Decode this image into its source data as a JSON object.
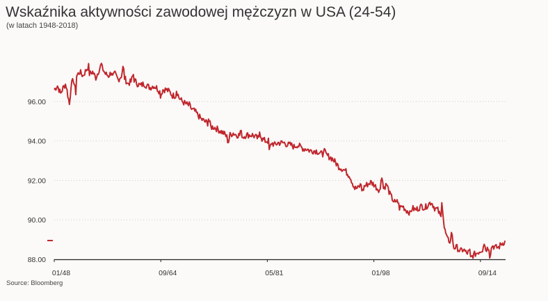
{
  "chart_data": {
    "type": "line",
    "title": "Wskaźnika aktywności zawodowej mężczyzn w USA (24-54)",
    "subtitle": "(w latach 1948-2018)",
    "source": "Source: Bloomberg",
    "xlabel": "",
    "ylabel": "",
    "ylim": [
      88,
      98.5
    ],
    "xlim": [
      1948.0,
      2018.6
    ],
    "yticks": [
      88,
      90,
      92,
      94,
      96
    ],
    "ytick_labels": [
      "88.00",
      "90.00",
      "92.00",
      "94.00",
      "96.00"
    ],
    "xticks": [
      1948.0,
      1964.67,
      1981.33,
      1998.0,
      2014.67
    ],
    "xtick_labels": [
      "01/48",
      "09/64",
      "05/81",
      "01/98",
      "09/14"
    ],
    "grid": "horizontal dotted",
    "line_color": "#c0272d",
    "series": [
      {
        "x": [
          1948.0,
          1948.5,
          1949.0,
          1949.4,
          1949.8,
          1950.2,
          1950.6,
          1951.0,
          1951.5,
          1952.0,
          1952.5,
          1953.0,
          1953.5,
          1954.0,
          1954.5,
          1955.0,
          1955.5,
          1956.0,
          1956.5,
          1957.0,
          1957.5,
          1958.0,
          1958.5,
          1959.0,
          1959.5,
          1960.0,
          1960.5,
          1961.0,
          1961.5,
          1962.0,
          1962.5,
          1963.0,
          1963.5,
          1964.0,
          1964.5,
          1965.0,
          1965.5,
          1966.0,
          1966.5,
          1967.0,
          1967.5,
          1968.0,
          1968.5,
          1969.0,
          1969.5,
          1970.0,
          1970.5,
          1971.0,
          1971.5,
          1972.0,
          1972.5,
          1973.0,
          1973.5,
          1974.0,
          1974.5,
          1975.0,
          1975.5,
          1976.0,
          1976.5,
          1977.0,
          1977.5,
          1978.0,
          1978.5,
          1979.0,
          1979.5,
          1980.0,
          1980.5,
          1981.0,
          1981.5,
          1982.0,
          1982.5,
          1983.0,
          1983.5,
          1984.0,
          1984.5,
          1985.0,
          1985.5,
          1986.0,
          1986.5,
          1987.0,
          1987.5,
          1988.0,
          1988.5,
          1989.0,
          1989.5,
          1990.0,
          1990.5,
          1991.0,
          1991.5,
          1992.0,
          1992.5,
          1993.0,
          1993.5,
          1994.0,
          1994.5,
          1995.0,
          1995.5,
          1996.0,
          1996.5,
          1997.0,
          1997.5,
          1998.0,
          1998.5,
          1999.0,
          1999.5,
          2000.0,
          2000.5,
          2001.0,
          2001.5,
          2002.0,
          2002.5,
          2003.0,
          2003.5,
          2004.0,
          2004.5,
          2005.0,
          2005.5,
          2006.0,
          2006.5,
          2007.0,
          2007.5,
          2008.0,
          2008.5,
          2009.0,
          2009.5,
          2010.0,
          2010.5,
          2011.0,
          2011.5,
          2012.0,
          2012.5,
          2013.0,
          2013.5,
          2014.0,
          2014.5,
          2015.0,
          2015.5,
          2016.0,
          2016.5,
          2017.0,
          2017.5,
          2018.0,
          2018.5
        ],
        "values": [
          96.6,
          96.8,
          96.4,
          96.7,
          96.9,
          96.2,
          96.8,
          97.1,
          97.3,
          97.5,
          97.3,
          97.6,
          97.4,
          97.5,
          97.2,
          97.6,
          97.7,
          97.4,
          97.3,
          97.5,
          97.4,
          97.1,
          97.3,
          97.2,
          96.9,
          97.0,
          97.1,
          96.9,
          96.8,
          96.9,
          96.8,
          96.7,
          96.8,
          96.7,
          96.5,
          96.6,
          96.6,
          96.5,
          96.3,
          96.3,
          96.2,
          96.0,
          95.9,
          95.8,
          95.6,
          95.5,
          95.3,
          95.1,
          95.0,
          94.9,
          94.7,
          94.7,
          94.6,
          94.5,
          94.4,
          94.2,
          94.3,
          94.4,
          94.3,
          94.3,
          94.2,
          94.3,
          94.3,
          94.3,
          94.2,
          94.1,
          94.1,
          94.0,
          94.0,
          93.9,
          93.8,
          93.9,
          93.9,
          93.9,
          93.8,
          93.8,
          93.7,
          93.8,
          93.7,
          93.6,
          93.6,
          93.5,
          93.5,
          93.5,
          93.4,
          93.3,
          93.3,
          93.2,
          93.1,
          92.9,
          92.7,
          92.6,
          92.5,
          92.3,
          92.0,
          91.6,
          91.6,
          91.8,
          91.7,
          91.8,
          91.9,
          91.8,
          91.6,
          91.5,
          91.6,
          91.8,
          91.3,
          91.0,
          90.8,
          90.6,
          90.7,
          90.5,
          90.4,
          90.6,
          90.5,
          90.6,
          90.7,
          90.6,
          90.8,
          90.9,
          90.6,
          90.5,
          90.1,
          89.6,
          89.0,
          88.9,
          88.6,
          88.6,
          88.4,
          88.5,
          88.3,
          88.4,
          88.2,
          88.3,
          88.4,
          88.5,
          88.5,
          88.6,
          88.7,
          88.6,
          88.6,
          88.8,
          88.9
        ],
        "spikes": [
          {
            "x": 1950.4,
            "y": 95.8
          },
          {
            "x": 1951.4,
            "y": 96.4
          },
          {
            "x": 1953.4,
            "y": 97.8
          },
          {
            "x": 1955.4,
            "y": 97.9
          },
          {
            "x": 1957.0,
            "y": 97.2
          },
          {
            "x": 1958.8,
            "y": 97.8
          },
          {
            "x": 1960.4,
            "y": 97.4
          },
          {
            "x": 1964.5,
            "y": 96.2
          },
          {
            "x": 1967.0,
            "y": 96.7
          },
          {
            "x": 1969.0,
            "y": 95.9
          },
          {
            "x": 1972.0,
            "y": 95.3
          },
          {
            "x": 1975.2,
            "y": 93.9
          },
          {
            "x": 1977.0,
            "y": 94.6
          },
          {
            "x": 1980.0,
            "y": 94.6
          },
          {
            "x": 1981.5,
            "y": 93.4
          },
          {
            "x": 1990.0,
            "y": 93.7
          },
          {
            "x": 1994.0,
            "y": 92.4
          },
          {
            "x": 1996.2,
            "y": 91.4
          },
          {
            "x": 1999.2,
            "y": 92.4
          },
          {
            "x": 2001.5,
            "y": 91.2
          },
          {
            "x": 2003.5,
            "y": 90.2
          },
          {
            "x": 2008.5,
            "y": 91.5
          },
          {
            "x": 2010.0,
            "y": 89.7
          },
          {
            "x": 2013.0,
            "y": 88.0
          },
          {
            "x": 2015.2,
            "y": 88.9
          },
          {
            "x": 2016.0,
            "y": 88.0
          },
          {
            "x": 2018.6,
            "y": 89.0
          }
        ]
      }
    ],
    "legend_marker": {
      "value": 88.95
    }
  }
}
